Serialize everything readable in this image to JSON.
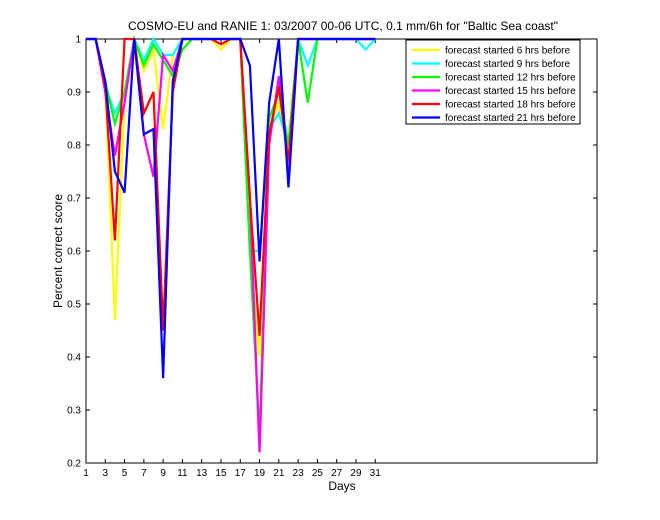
{
  "chart_data": {
    "type": "line",
    "title": "COSMO-EU and RANIE 1: 03/2007 00-06 UTC, 0.1 mm/6h for \"Baltic Sea coast\"",
    "xlabel": "Days",
    "ylabel": "Percent correct score",
    "xlim": [
      1,
      54
    ],
    "ylim": [
      0.2,
      1.0
    ],
    "xticks": [
      "1",
      "3",
      "5",
      "7",
      "9",
      "11",
      "13",
      "15",
      "17",
      "19",
      "21",
      "23",
      "25",
      "27",
      "29",
      "31"
    ],
    "yticks": [
      "0.2",
      "0.3",
      "0.4",
      "0.5",
      "0.6",
      "0.7",
      "0.8",
      "0.9",
      "1"
    ],
    "legend_position": "top-right",
    "x": [
      1,
      2,
      3,
      4,
      5,
      6,
      7,
      8,
      9,
      10,
      11,
      12,
      13,
      14,
      15,
      16,
      17,
      18,
      19,
      20,
      21,
      22,
      23,
      24,
      25,
      26,
      27,
      28,
      29,
      30,
      31
    ],
    "series": [
      {
        "name": "forecast started 6 hrs before",
        "color": "#ffff00",
        "values": [
          1,
          1,
          0.92,
          0.47,
          0.88,
          1,
          0.94,
          0.98,
          0.83,
          0.97,
          1,
          1,
          1,
          1,
          0.98,
          1,
          1,
          0.6,
          0.4,
          0.83,
          0.88,
          0.78,
          1,
          1,
          1,
          1,
          1,
          1,
          1,
          1,
          1
        ]
      },
      {
        "name": "forecast started 9 hrs before",
        "color": "#00ffff",
        "values": [
          1,
          1,
          0.91,
          0.86,
          0.9,
          1,
          0.96,
          1,
          0.97,
          0.97,
          1,
          1,
          1,
          1,
          1,
          1,
          1,
          0.6,
          0.6,
          0.83,
          0.86,
          0.8,
          1,
          0.95,
          1,
          1,
          1,
          1,
          1,
          0.98,
          1
        ]
      },
      {
        "name": "forecast started 12 hrs before",
        "color": "#00ff00",
        "values": [
          1,
          1,
          0.92,
          0.84,
          0.9,
          1,
          0.95,
          0.99,
          0.96,
          0.93,
          0.98,
          1,
          1,
          1,
          1,
          1,
          1,
          0.6,
          0.25,
          0.85,
          0.9,
          0.8,
          1,
          0.88,
          1,
          1,
          1,
          1,
          1,
          1,
          1
        ]
      },
      {
        "name": "forecast started 15 hrs before",
        "color": "#ff00ff",
        "values": [
          1,
          1,
          0.9,
          0.78,
          0.88,
          1,
          0.82,
          0.74,
          0.97,
          0.94,
          1,
          1,
          1,
          1,
          1,
          1,
          1,
          0.7,
          0.22,
          0.8,
          0.93,
          0.75,
          1,
          1,
          1,
          1,
          1,
          1,
          1,
          1,
          1
        ]
      },
      {
        "name": "forecast started 18 hrs before",
        "color": "#ff0000",
        "values": [
          1,
          1,
          0.91,
          0.62,
          1,
          1,
          0.86,
          0.9,
          0.45,
          0.9,
          1,
          1,
          1,
          1,
          0.99,
          1,
          1,
          0.7,
          0.44,
          0.82,
          0.91,
          0.77,
          1,
          1,
          1,
          1,
          1,
          1,
          1,
          1,
          1
        ]
      },
      {
        "name": "forecast started 21 hrs before",
        "color": "#0000ff",
        "values": [
          1,
          1,
          0.92,
          0.75,
          0.71,
          1,
          0.82,
          0.83,
          0.36,
          0.92,
          1,
          1,
          1,
          1,
          1,
          1,
          1,
          0.95,
          0.58,
          0.88,
          1,
          0.72,
          1,
          1,
          1,
          1,
          1,
          1,
          1,
          1,
          1
        ]
      }
    ]
  }
}
